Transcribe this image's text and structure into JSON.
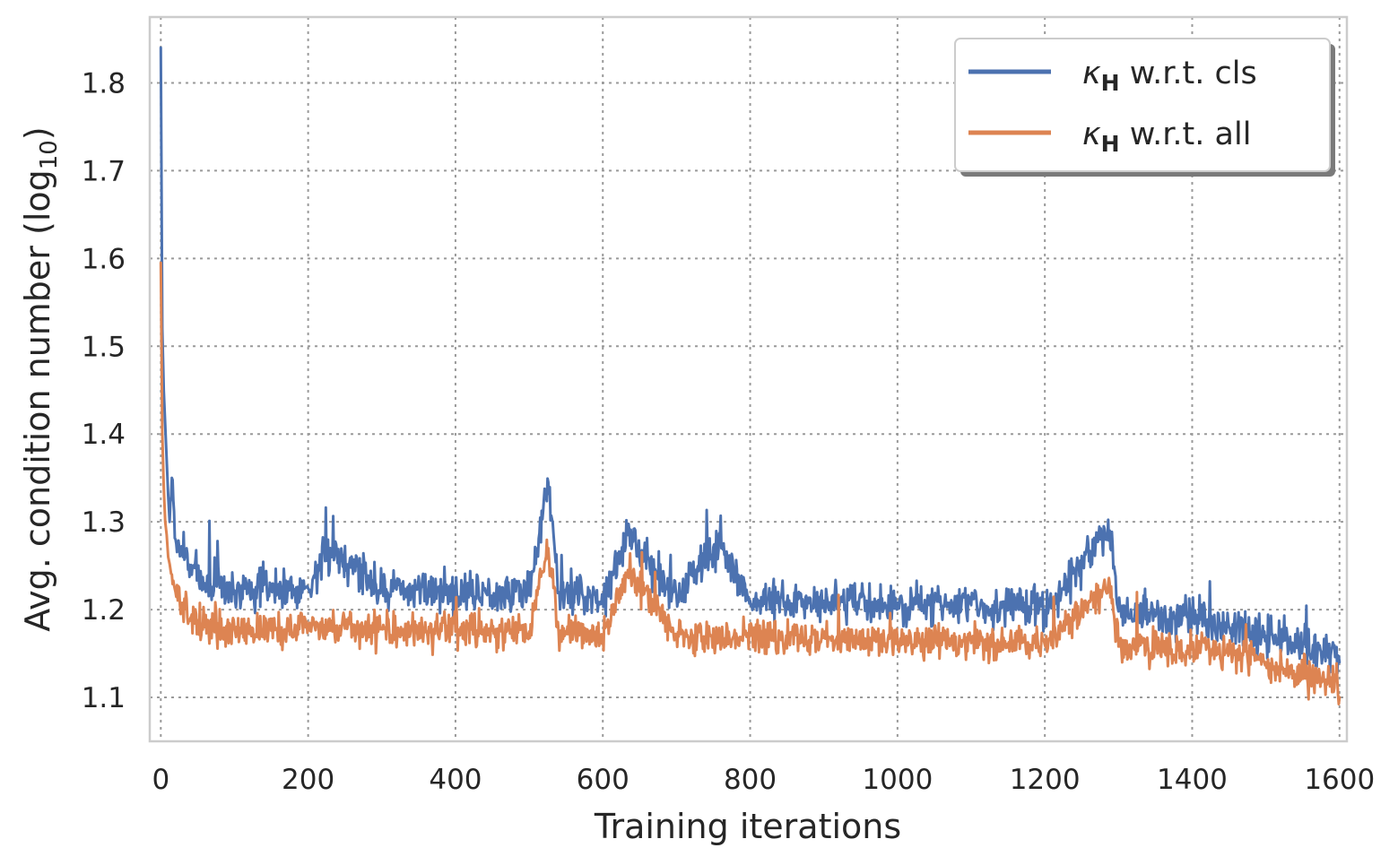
{
  "chart_data": {
    "type": "line",
    "title": "",
    "xlabel": "Training iterations",
    "ylabel_main": "Avg. condition number (log",
    "ylabel_sub": "10",
    "ylabel_close": ")",
    "xlim": [
      -15,
      1610
    ],
    "ylim": [
      1.05,
      1.875
    ],
    "x_ticks": [
      0,
      200,
      400,
      600,
      800,
      1000,
      1200,
      1400,
      1600
    ],
    "x_tick_labels": [
      "0",
      "200",
      "400",
      "600",
      "800",
      "1000",
      "1200",
      "1400",
      "1600"
    ],
    "y_ticks": [
      1.1,
      1.2,
      1.3,
      1.4,
      1.5,
      1.6,
      1.7,
      1.8
    ],
    "y_tick_labels": [
      "1.1",
      "1.2",
      "1.3",
      "1.4",
      "1.5",
      "1.6",
      "1.7",
      "1.8"
    ],
    "grid": true,
    "legend_position": "top-right",
    "series": [
      {
        "symbol": "κ",
        "subscript": "H",
        "suffix": " w.r.t. cls",
        "color": "#4c72b0",
        "points": [
          [
            0,
            1.84
          ],
          [
            2,
            1.52
          ],
          [
            4,
            1.45
          ],
          [
            6,
            1.41
          ],
          [
            8,
            1.37
          ],
          [
            10,
            1.33
          ],
          [
            12,
            1.3
          ],
          [
            15,
            1.35
          ],
          [
            20,
            1.28
          ],
          [
            25,
            1.27
          ],
          [
            30,
            1.26
          ],
          [
            40,
            1.25
          ],
          [
            50,
            1.24
          ],
          [
            60,
            1.23
          ],
          [
            80,
            1.225
          ],
          [
            100,
            1.222
          ],
          [
            150,
            1.225
          ],
          [
            200,
            1.224
          ],
          [
            230,
            1.27
          ],
          [
            300,
            1.225
          ],
          [
            400,
            1.22
          ],
          [
            500,
            1.22
          ],
          [
            526,
            1.345
          ],
          [
            540,
            1.22
          ],
          [
            600,
            1.215
          ],
          [
            634,
            1.285
          ],
          [
            700,
            1.215
          ],
          [
            755,
            1.275
          ],
          [
            800,
            1.21
          ],
          [
            900,
            1.21
          ],
          [
            1000,
            1.205
          ],
          [
            1100,
            1.205
          ],
          [
            1200,
            1.2
          ],
          [
            1288,
            1.29
          ],
          [
            1300,
            1.198
          ],
          [
            1400,
            1.19
          ],
          [
            1450,
            1.18
          ],
          [
            1500,
            1.17
          ],
          [
            1550,
            1.16
          ],
          [
            1580,
            1.15
          ],
          [
            1595,
            1.15
          ],
          [
            1600,
            1.14
          ]
        ],
        "noise": 0.014,
        "seed": 7
      },
      {
        "symbol": "κ",
        "subscript": "H",
        "suffix": " w.r.t. all",
        "color": "#dd8452",
        "points": [
          [
            0,
            1.595
          ],
          [
            2,
            1.4
          ],
          [
            4,
            1.34
          ],
          [
            6,
            1.3
          ],
          [
            8,
            1.285
          ],
          [
            10,
            1.26
          ],
          [
            15,
            1.24
          ],
          [
            20,
            1.22
          ],
          [
            30,
            1.2
          ],
          [
            40,
            1.19
          ],
          [
            60,
            1.18
          ],
          [
            100,
            1.178
          ],
          [
            200,
            1.178
          ],
          [
            300,
            1.178
          ],
          [
            400,
            1.175
          ],
          [
            500,
            1.175
          ],
          [
            526,
            1.27
          ],
          [
            540,
            1.175
          ],
          [
            600,
            1.172
          ],
          [
            634,
            1.245
          ],
          [
            700,
            1.17
          ],
          [
            800,
            1.17
          ],
          [
            900,
            1.168
          ],
          [
            1000,
            1.165
          ],
          [
            1100,
            1.162
          ],
          [
            1200,
            1.16
          ],
          [
            1288,
            1.23
          ],
          [
            1300,
            1.158
          ],
          [
            1400,
            1.155
          ],
          [
            1450,
            1.15
          ],
          [
            1500,
            1.14
          ],
          [
            1550,
            1.125
          ],
          [
            1580,
            1.12
          ],
          [
            1595,
            1.12
          ],
          [
            1600,
            1.1
          ]
        ],
        "noise": 0.012,
        "seed": 13
      }
    ]
  }
}
